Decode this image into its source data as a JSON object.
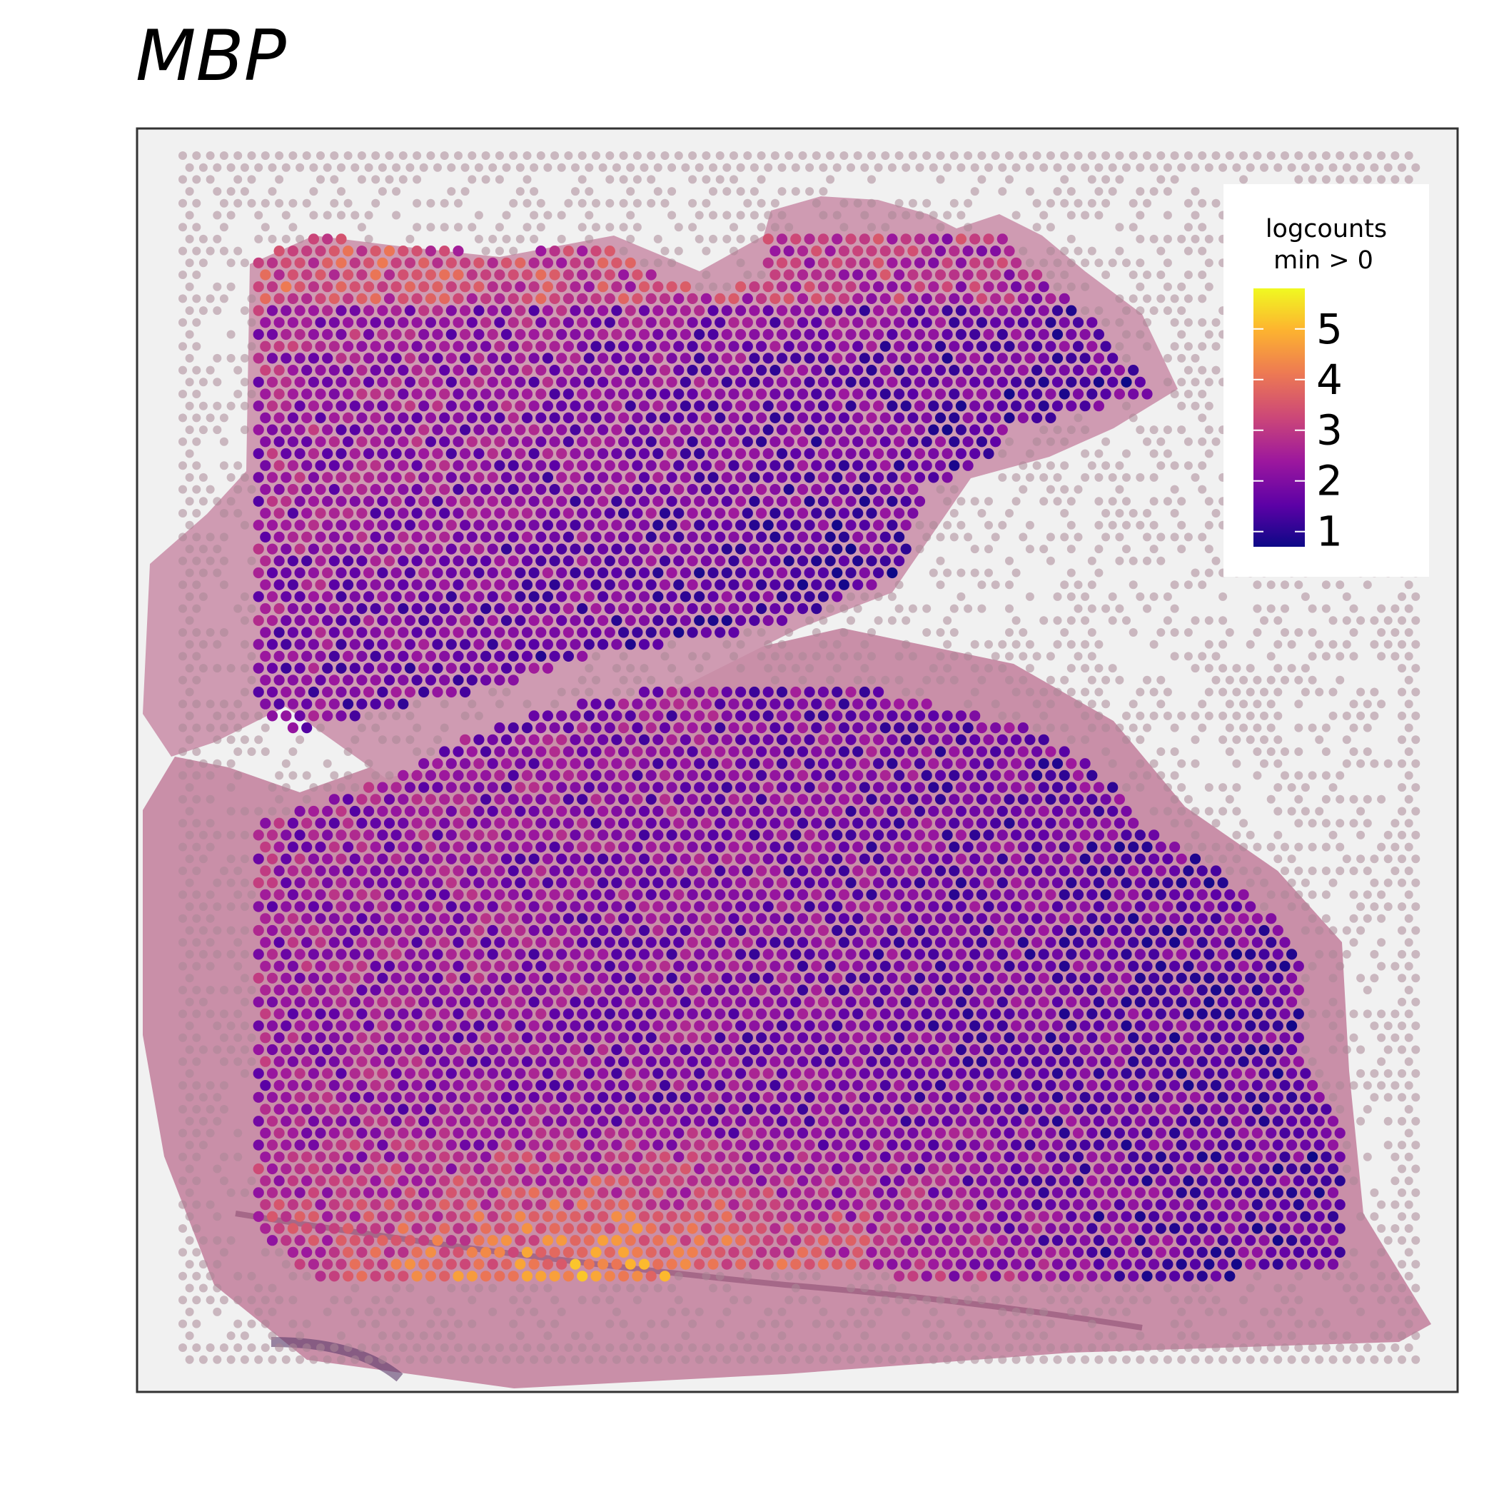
{
  "title": "MBP",
  "chart_data": {
    "type": "heatmap",
    "title": "MBP",
    "xlabel": "",
    "ylabel": "",
    "legend": {
      "title_line1": "logcounts",
      "title_line2": "min > 0",
      "ticks": [
        "1",
        "2",
        "3",
        "4",
        "5"
      ],
      "tick_values": [
        1,
        2,
        3,
        4,
        5
      ],
      "range": [
        0.7,
        5.8
      ],
      "placement": "top-right",
      "colormap": "plasma"
    },
    "colors": [
      "#0d0887",
      "#5c01a6",
      "#9c179e",
      "#cc4778",
      "#ed7953",
      "#fdb42f",
      "#f0f921"
    ],
    "background_note": "H&E tissue section with Visium spot grid",
    "grid": false,
    "summary": {
      "gene": "MBP",
      "high_expression_region": "bottom band (~4-5.8)",
      "low_expression_region": "upper-left and right lobes (~1-2)"
    }
  }
}
